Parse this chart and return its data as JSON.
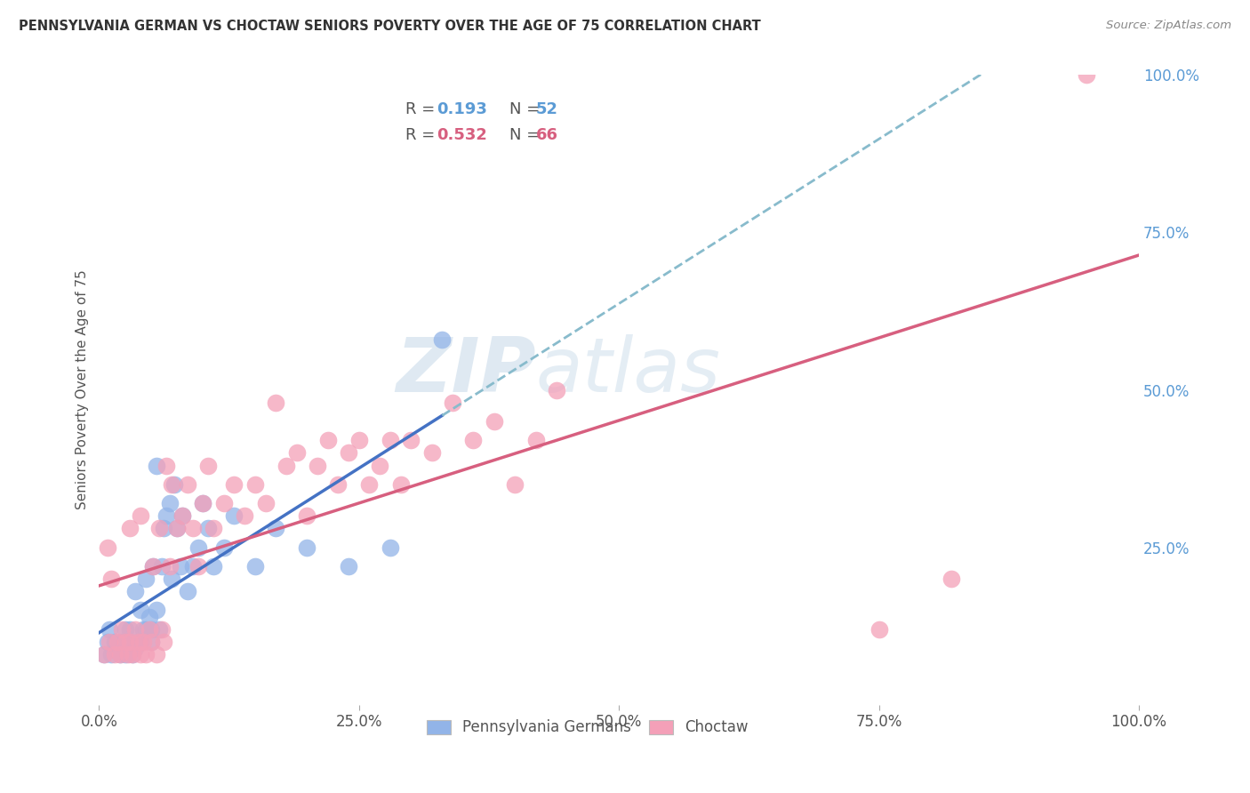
{
  "title": "PENNSYLVANIA GERMAN VS CHOCTAW SENIORS POVERTY OVER THE AGE OF 75 CORRELATION CHART",
  "source": "Source: ZipAtlas.com",
  "ylabel": "Seniors Poverty Over the Age of 75",
  "xlim": [
    0,
    1.0
  ],
  "ylim": [
    0,
    1.0
  ],
  "xtick_labels": [
    "0.0%",
    "25.0%",
    "50.0%",
    "75.0%",
    "100.0%"
  ],
  "xtick_vals": [
    0.0,
    0.25,
    0.5,
    0.75,
    1.0
  ],
  "ytick_labels_right": [
    "100.0%",
    "75.0%",
    "50.0%",
    "25.0%"
  ],
  "ytick_vals": [
    1.0,
    0.75,
    0.5,
    0.25
  ],
  "color_pa": "#92b4e8",
  "color_choctaw": "#f4a0b8",
  "color_pa_line": "#4472c4",
  "color_choctaw_line": "#d75f7f",
  "color_pa_dash": "#88bbcc",
  "watermark_zip": "ZIP",
  "watermark_atlas": "atlas",
  "background_color": "#ffffff",
  "grid_color": "#dddddd",
  "pa_scatter_x": [
    0.005,
    0.008,
    0.01,
    0.012,
    0.015,
    0.018,
    0.02,
    0.022,
    0.025,
    0.025,
    0.028,
    0.03,
    0.03,
    0.032,
    0.035,
    0.035,
    0.038,
    0.04,
    0.04,
    0.042,
    0.045,
    0.045,
    0.048,
    0.05,
    0.05,
    0.052,
    0.055,
    0.055,
    0.058,
    0.06,
    0.062,
    0.065,
    0.068,
    0.07,
    0.072,
    0.075,
    0.078,
    0.08,
    0.085,
    0.09,
    0.095,
    0.1,
    0.105,
    0.11,
    0.12,
    0.13,
    0.15,
    0.17,
    0.2,
    0.24,
    0.28,
    0.33
  ],
  "pa_scatter_y": [
    0.08,
    0.1,
    0.12,
    0.08,
    0.1,
    0.09,
    0.08,
    0.1,
    0.08,
    0.12,
    0.09,
    0.1,
    0.12,
    0.08,
    0.09,
    0.18,
    0.1,
    0.1,
    0.15,
    0.12,
    0.12,
    0.2,
    0.14,
    0.1,
    0.12,
    0.22,
    0.15,
    0.38,
    0.12,
    0.22,
    0.28,
    0.3,
    0.32,
    0.2,
    0.35,
    0.28,
    0.22,
    0.3,
    0.18,
    0.22,
    0.25,
    0.32,
    0.28,
    0.22,
    0.25,
    0.3,
    0.22,
    0.28,
    0.25,
    0.22,
    0.25,
    0.58
  ],
  "choctaw_scatter_x": [
    0.005,
    0.008,
    0.01,
    0.012,
    0.015,
    0.018,
    0.02,
    0.022,
    0.025,
    0.028,
    0.03,
    0.03,
    0.032,
    0.035,
    0.038,
    0.04,
    0.04,
    0.042,
    0.045,
    0.048,
    0.05,
    0.052,
    0.055,
    0.058,
    0.06,
    0.062,
    0.065,
    0.068,
    0.07,
    0.075,
    0.08,
    0.085,
    0.09,
    0.095,
    0.1,
    0.105,
    0.11,
    0.12,
    0.13,
    0.14,
    0.15,
    0.16,
    0.17,
    0.18,
    0.19,
    0.2,
    0.21,
    0.22,
    0.23,
    0.24,
    0.25,
    0.26,
    0.27,
    0.28,
    0.29,
    0.3,
    0.32,
    0.34,
    0.36,
    0.38,
    0.4,
    0.42,
    0.44,
    0.75,
    0.82,
    0.95
  ],
  "choctaw_scatter_y": [
    0.08,
    0.25,
    0.1,
    0.2,
    0.08,
    0.1,
    0.08,
    0.12,
    0.1,
    0.08,
    0.1,
    0.28,
    0.08,
    0.12,
    0.1,
    0.08,
    0.3,
    0.1,
    0.08,
    0.12,
    0.1,
    0.22,
    0.08,
    0.28,
    0.12,
    0.1,
    0.38,
    0.22,
    0.35,
    0.28,
    0.3,
    0.35,
    0.28,
    0.22,
    0.32,
    0.38,
    0.28,
    0.32,
    0.35,
    0.3,
    0.35,
    0.32,
    0.48,
    0.38,
    0.4,
    0.3,
    0.38,
    0.42,
    0.35,
    0.4,
    0.42,
    0.35,
    0.38,
    0.42,
    0.35,
    0.42,
    0.4,
    0.48,
    0.42,
    0.45,
    0.35,
    0.42,
    0.5,
    0.12,
    0.2,
    1.0
  ]
}
